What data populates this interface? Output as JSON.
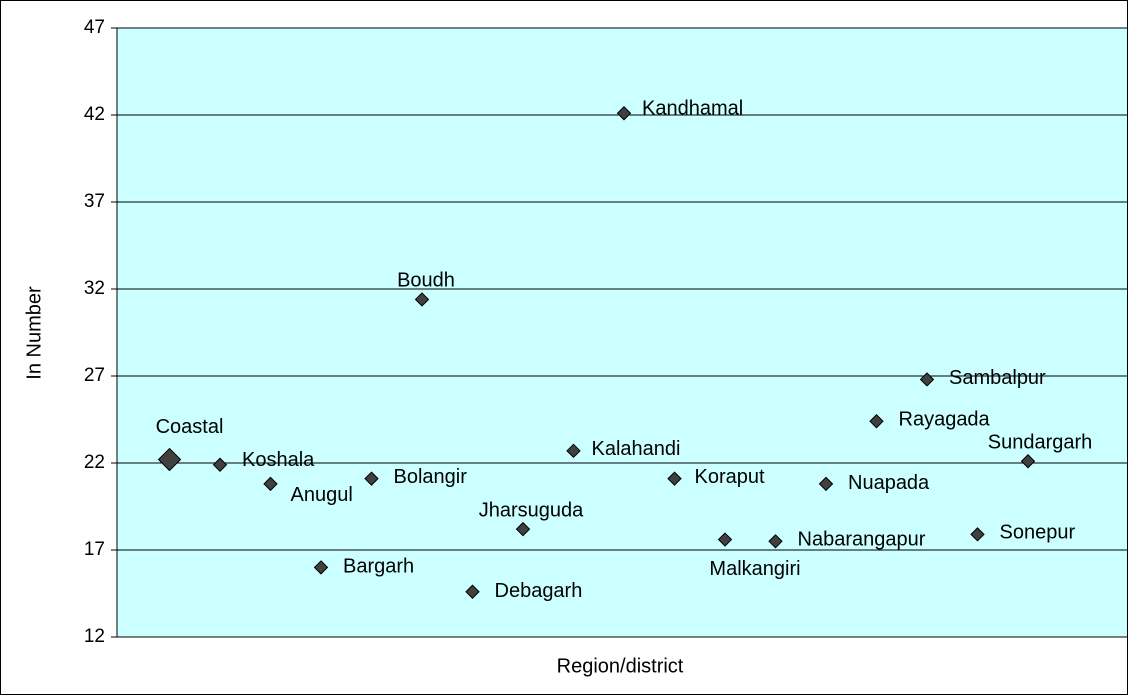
{
  "chart_data": {
    "type": "scatter",
    "x_label": "Region/district",
    "y_label": "In Number",
    "categories": [
      "Coastal",
      "Koshala",
      "Anugul",
      "Bargarh",
      "Bolangir",
      "Boudh",
      "Debagarh",
      "Jharsuguda",
      "Kalahandi",
      "Kandhamal",
      "Koraput",
      "Malkangiri",
      "Nabarangapur",
      "Nuapada",
      "Rayagada",
      "Sambalpur",
      "Sonepur",
      "Sundargarh"
    ],
    "values": [
      22.2,
      21.9,
      20.8,
      16.0,
      21.1,
      31.4,
      14.6,
      18.2,
      22.7,
      42.1,
      21.1,
      17.6,
      17.5,
      20.8,
      24.4,
      26.8,
      17.9,
      22.1
    ],
    "color": "#404040",
    "background": "#ccffff",
    "ylim": [
      12,
      47
    ],
    "yticks": [
      12,
      17,
      22,
      27,
      32,
      37,
      42,
      47
    ],
    "grid": true
  }
}
